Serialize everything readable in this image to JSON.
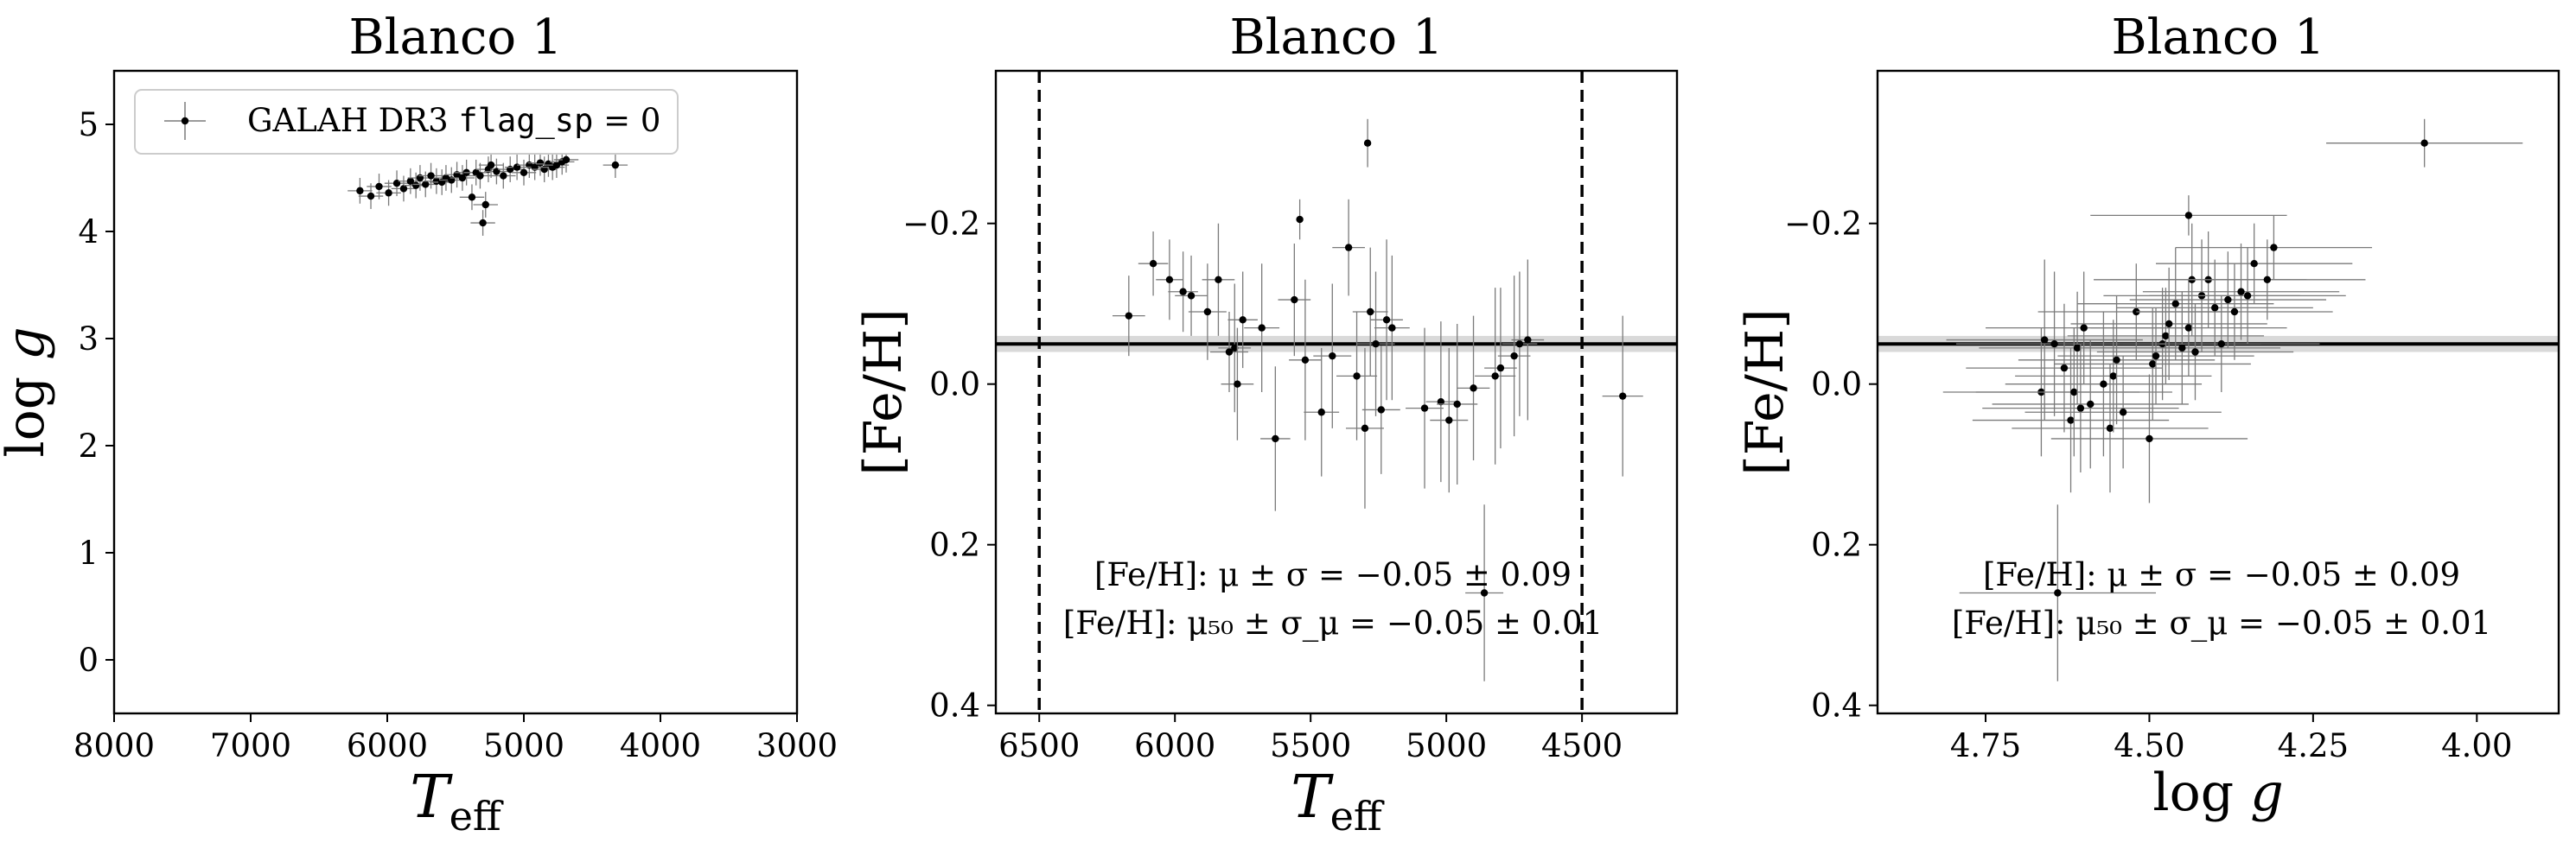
{
  "chart_data": [
    {
      "type": "scatter",
      "title": "Blanco 1",
      "xlabel": "T_eff",
      "ylabel": "log g",
      "xlim": [
        8000,
        3000
      ],
      "ylim": [
        5.5,
        -0.5
      ],
      "x_inverted": true,
      "y_inverted": true,
      "xticks": [
        8000,
        7000,
        6000,
        5000,
        4000,
        3000
      ],
      "yticks": [
        0,
        1,
        2,
        3,
        4,
        5
      ],
      "xtick_labels": [
        "8000",
        "7000",
        "6000",
        "5000",
        "4000",
        "3000"
      ],
      "ytick_labels": [
        "0",
        "1",
        "2",
        "3",
        "4",
        "5"
      ],
      "legend": {
        "placement": "top-left",
        "label_prefix": "GALAH DR3 ",
        "label_code": "flag_sp",
        "label_suffix": " = 0"
      },
      "series": [
        {
          "x": [
            6200,
            6120,
            6060,
            5990,
            5930,
            5880,
            5830,
            5790,
            5760,
            5720,
            5680,
            5640,
            5600,
            5570,
            5530,
            5490,
            5450,
            5420,
            5380,
            5350,
            5320,
            5300,
            5280,
            5260,
            5240,
            5200,
            5150,
            5100,
            5050,
            5000,
            4960,
            4920,
            4880,
            4850,
            4820,
            4790,
            4760,
            4720,
            4690,
            4330
          ],
          "y": [
            4.38,
            4.33,
            4.42,
            4.36,
            4.45,
            4.4,
            4.47,
            4.43,
            4.5,
            4.44,
            4.52,
            4.47,
            4.46,
            4.5,
            4.48,
            4.53,
            4.5,
            4.55,
            4.32,
            4.55,
            4.52,
            4.08,
            4.25,
            4.58,
            4.62,
            4.56,
            4.52,
            4.58,
            4.6,
            4.55,
            4.62,
            4.6,
            4.64,
            4.58,
            4.63,
            4.6,
            4.62,
            4.65,
            4.67,
            4.62
          ],
          "xerr": 90,
          "yerr": 0.12
        }
      ]
    },
    {
      "type": "scatter",
      "title": "Blanco 1",
      "xlabel": "T_eff",
      "ylabel": "[Fe/H]",
      "xlim": [
        6660,
        4150
      ],
      "ylim": [
        -0.39,
        0.41
      ],
      "x_inverted": true,
      "xticks": [
        6500,
        6000,
        5500,
        5000,
        4500
      ],
      "yticks": [
        0.4,
        0.2,
        0.0,
        -0.2
      ],
      "xtick_labels": [
        "6500",
        "6000",
        "5500",
        "5000",
        "4500"
      ],
      "ytick_labels": [
        "0.4",
        "0.2",
        "0.0",
        "−0.2"
      ],
      "vlines": [
        6500,
        4500
      ],
      "hline": -0.05,
      "band": [
        -0.06,
        -0.04
      ],
      "annotations": [
        {
          "prefix": "[Fe/H]: μ ± σ = ",
          "value": "−0.05 ± 0.09"
        },
        {
          "prefix": "[Fe/H]: μ₅₀ ± σ_μ = ",
          "value": "−0.05 ± 0.01"
        }
      ],
      "series": [
        {
          "x": [
            6170,
            6080,
            6020,
            5970,
            5940,
            5880,
            5840,
            5800,
            5780,
            5770,
            5750,
            5680,
            5630,
            5560,
            5520,
            5460,
            5420,
            5360,
            5330,
            5300,
            5280,
            5260,
            5240,
            5220,
            5200,
            5080,
            5020,
            4990,
            4960,
            4900,
            4860,
            4820,
            4800,
            4750,
            4730,
            4700,
            4350,
            5290,
            5540
          ],
          "y": [
            -0.085,
            -0.15,
            -0.13,
            -0.115,
            -0.11,
            -0.09,
            -0.13,
            -0.04,
            -0.045,
            0.0,
            -0.08,
            -0.07,
            0.068,
            -0.105,
            -0.03,
            0.035,
            -0.035,
            -0.17,
            -0.01,
            0.055,
            -0.09,
            -0.05,
            0.032,
            -0.08,
            -0.07,
            0.03,
            0.022,
            0.045,
            0.025,
            0.005,
            0.26,
            -0.01,
            -0.02,
            -0.035,
            -0.05,
            -0.055,
            0.015,
            -0.3,
            -0.205
          ],
          "xerr": [
            60,
            55,
            50,
            55,
            60,
            70,
            60,
            70,
            60,
            60,
            55,
            65,
            55,
            60,
            60,
            65,
            70,
            60,
            75,
            70,
            65,
            70,
            70,
            60,
            65,
            70,
            55,
            70,
            75,
            60,
            70,
            75,
            60,
            60,
            65,
            60,
            75,
            5,
            5
          ],
          "yerr": [
            0.05,
            0.04,
            0.05,
            0.05,
            0.05,
            0.06,
            0.07,
            0.05,
            0.08,
            0.07,
            0.06,
            0.08,
            0.09,
            0.07,
            0.1,
            0.08,
            0.09,
            0.06,
            0.08,
            0.1,
            0.08,
            0.09,
            0.08,
            0.1,
            0.09,
            0.1,
            0.1,
            0.09,
            0.1,
            0.09,
            0.11,
            0.11,
            0.1,
            0.1,
            0.09,
            0.1,
            0.1,
            0.03,
            0.025
          ]
        }
      ]
    },
    {
      "type": "scatter",
      "title": "Blanco 1",
      "xlabel": "log g",
      "ylabel": "[Fe/H]",
      "xlim": [
        4.915,
        3.875
      ],
      "ylim": [
        -0.39,
        0.41
      ],
      "x_inverted": true,
      "xticks": [
        4.75,
        4.5,
        4.25,
        4.0
      ],
      "yticks": [
        0.4,
        0.2,
        0.0,
        -0.2
      ],
      "xtick_labels": [
        "4.75",
        "4.50",
        "4.25",
        "4.00"
      ],
      "ytick_labels": [
        "0.4",
        "0.2",
        "0.0",
        "−0.2"
      ],
      "hline": -0.05,
      "band": [
        -0.06,
        -0.04
      ],
      "annotations": [
        {
          "prefix": "[Fe/H]: μ ± σ = ",
          "value": "−0.05 ± 0.09"
        },
        {
          "prefix": "[Fe/H]: μ₅₀ ± σ_μ = ",
          "value": "−0.05 ± 0.01"
        }
      ],
      "series": [
        {
          "x": [
            4.64,
            4.665,
            4.66,
            4.645,
            4.63,
            4.62,
            4.615,
            4.61,
            4.605,
            4.6,
            4.59,
            4.57,
            4.56,
            4.555,
            4.55,
            4.54,
            4.52,
            4.5,
            4.495,
            4.49,
            4.48,
            4.475,
            4.47,
            4.46,
            4.45,
            4.44,
            4.435,
            4.43,
            4.42,
            4.41,
            4.4,
            4.39,
            4.38,
            4.37,
            4.36,
            4.35,
            4.34,
            4.32,
            4.31,
            4.08,
            4.44
          ],
          "y": [
            0.26,
            0.01,
            -0.055,
            -0.05,
            -0.02,
            0.045,
            0.01,
            -0.045,
            0.03,
            -0.07,
            0.025,
            0.0,
            0.055,
            -0.01,
            -0.03,
            0.035,
            -0.09,
            0.068,
            -0.025,
            -0.035,
            -0.05,
            -0.06,
            -0.075,
            -0.1,
            -0.045,
            -0.07,
            -0.13,
            -0.04,
            -0.11,
            -0.13,
            -0.095,
            -0.05,
            -0.105,
            -0.09,
            -0.115,
            -0.11,
            -0.15,
            -0.13,
            -0.17,
            -0.3,
            -0.21
          ],
          "xerr": 0.15,
          "yerr": [
            0.11,
            0.08,
            0.1,
            0.09,
            0.08,
            0.09,
            0.08,
            0.07,
            0.08,
            0.07,
            0.08,
            0.09,
            0.08,
            0.07,
            0.08,
            0.07,
            0.06,
            0.08,
            0.07,
            0.06,
            0.07,
            0.06,
            0.07,
            0.07,
            0.07,
            0.06,
            0.07,
            0.06,
            0.07,
            0.06,
            0.06,
            0.06,
            0.06,
            0.06,
            0.06,
            0.06,
            0.05,
            0.05,
            0.04,
            0.03,
            0.025
          ]
        }
      ]
    }
  ]
}
